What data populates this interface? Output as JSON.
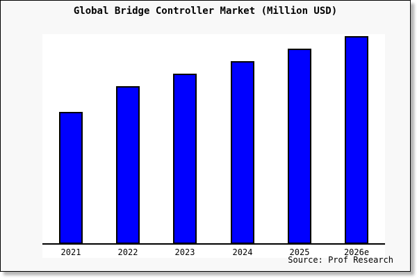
{
  "figure": {
    "background_color": "#f8f8f8",
    "plot_background_color": "#ffffff",
    "border_color": "#000000",
    "source": "Source: Prof Research"
  },
  "chart_data": {
    "type": "bar",
    "title": "Global Bridge Controller Market (Million USD)",
    "categories": [
      "2021",
      "2022",
      "2023",
      "2024",
      "2025",
      "2026e"
    ],
    "values": [
      63,
      75,
      81,
      87,
      93,
      99
    ],
    "values_scale": "percent of plot height (no y-axis scale shown in chart)",
    "xlabel": "",
    "ylabel": "",
    "ylim": [
      0,
      100
    ],
    "grid": false,
    "legend": false,
    "y_axis_visible": false,
    "bar_color": "#0000ff",
    "bar_border_color": "#000000",
    "annotations": [
      "Source: Prof Research"
    ]
  }
}
